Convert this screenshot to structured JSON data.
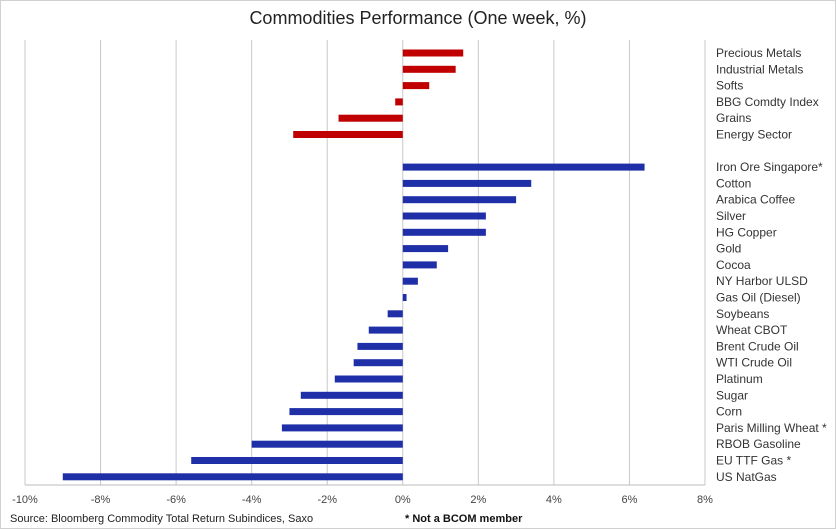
{
  "chart_data": {
    "type": "bar",
    "orientation": "horizontal",
    "title": "Commodities Performance (One week, %)",
    "xlim": [
      -10,
      8
    ],
    "xticks": [
      "-10%",
      "-8%",
      "-6%",
      "-4%",
      "-2%",
      "0%",
      "2%",
      "4%",
      "6%",
      "8%"
    ],
    "grid": "vertical",
    "groups": [
      {
        "color": "#c00000",
        "categories": [
          "Precious Metals",
          "Industrial Metals",
          "Softs",
          "BBG Comdty Index",
          "Grains",
          "Energy Sector"
        ],
        "values": [
          1.6,
          1.4,
          0.7,
          -0.2,
          -1.7,
          -2.9
        ]
      },
      {
        "color": "#1f2fa8",
        "categories": [
          "Iron Ore Singapore*",
          "Cotton",
          "Arabica Coffee",
          "Silver",
          "HG Copper",
          "Gold",
          "Cocoa",
          "NY Harbor ULSD",
          "Gas Oil (Diesel)",
          "Soybeans",
          "Wheat CBOT",
          "Brent Crude Oil",
          "WTI Crude Oil",
          "Platinum",
          "Sugar",
          "Corn",
          "Paris Milling Wheat *",
          "RBOB Gasoline",
          "EU TTF Gas *",
          "US NatGas"
        ],
        "values": [
          6.4,
          3.4,
          3.0,
          2.2,
          2.2,
          1.2,
          0.9,
          0.4,
          0.1,
          -0.4,
          -0.9,
          -1.2,
          -1.3,
          -1.8,
          -2.7,
          -3.0,
          -3.2,
          -4.0,
          -5.6,
          -9.0
        ]
      }
    ]
  },
  "footer": {
    "source": "Source: Bloomberg Commodity Total Return Subindices, Saxo",
    "note": "* Not a BCOM member"
  }
}
